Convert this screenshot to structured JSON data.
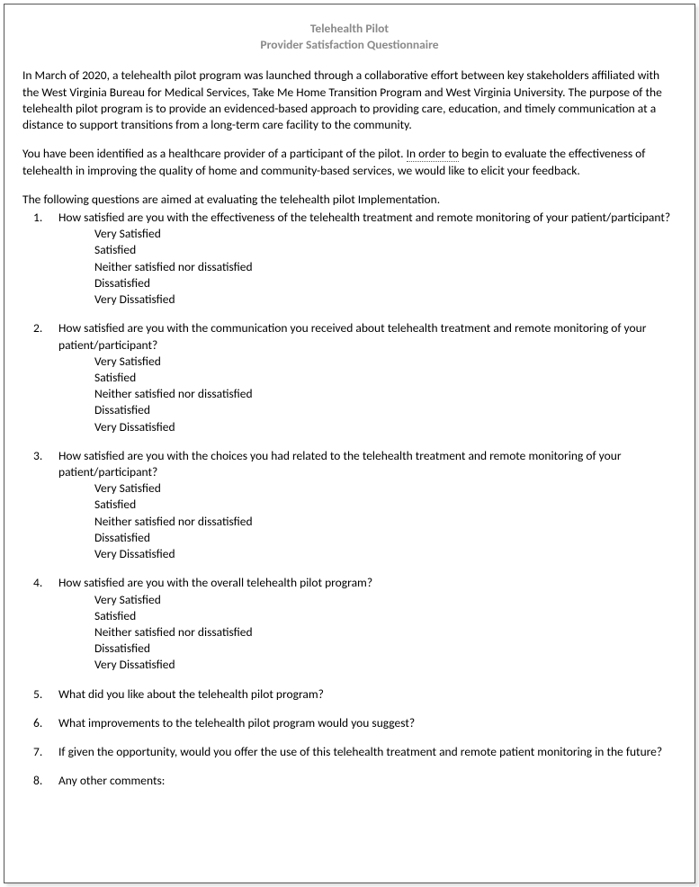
{
  "header": {
    "title": "Telehealth Pilot",
    "subtitle": "Provider Satisfaction Questionnaire"
  },
  "paragraphs": {
    "p1": "In March of 2020, a telehealth pilot program was launched through a collaborative effort between key stakeholders affiliated with the West Virginia Bureau for Medical Services, Take Me Home Transition Program and West Virginia University. The purpose of the telehealth pilot program is to provide an evidenced-based approach to providing care, education, and timely communication at a distance to support transitions from a long-term care facility to the community.",
    "p2_a": "You have been identified as a healthcare provider of a participant of the pilot. ",
    "p2_b": "In order to",
    "p2_c": " begin to evaluate the effectiveness of telehealth in improving the quality of home and community-based services, we would like to elicit your feedback.",
    "intro": "The following questions are aimed at evaluating the telehealth pilot Implementation."
  },
  "satisfaction_options": [
    "Very Satisfied",
    "Satisfied",
    "Neither satisfied nor dissatisfied",
    "Dissatisfied",
    "Very Dissatisfied"
  ],
  "questions": [
    {
      "text": "How satisfied are you with the effectiveness of the telehealth treatment and remote monitoring of your patient/participant?",
      "has_options": true
    },
    {
      "text": "How satisfied are you with the communication you received about telehealth treatment and remote monitoring of your patient/participant?",
      "has_options": true
    },
    {
      "text": "How satisfied are you with the choices you had related to the telehealth treatment and remote monitoring of your patient/participant?",
      "has_options": true
    },
    {
      "text": "How satisfied are you with the overall telehealth pilot program?",
      "has_options": true
    },
    {
      "text": "What did you like about the telehealth pilot program?",
      "has_options": false
    },
    {
      "text": "What improvements to the telehealth pilot program would you suggest?",
      "has_options": false
    },
    {
      "text": "If given the opportunity, would you offer the use of this telehealth treatment and remote patient monitoring in the future?",
      "has_options": false
    },
    {
      "text": "Any other comments:",
      "has_options": false
    }
  ]
}
